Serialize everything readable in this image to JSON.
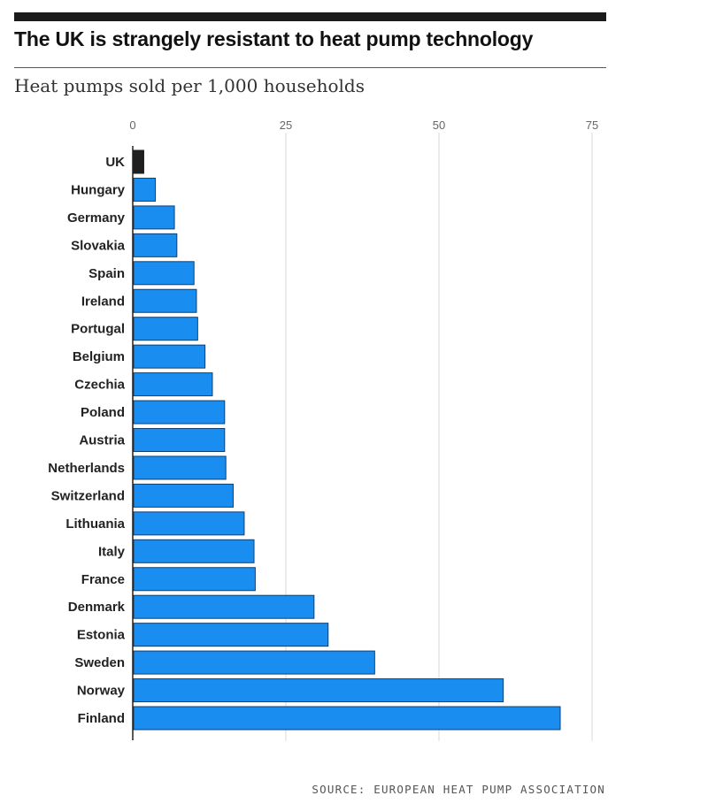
{
  "header": {
    "title": "The UK is strangely resistant to heat pump technology",
    "subtitle": "Heat pumps sold per 1,000 households"
  },
  "footer": {
    "source": "SOURCE: EUROPEAN HEAT PUMP ASSOCIATION"
  },
  "colors": {
    "highlight": "#1f1f1f",
    "bar": "#1a8ef0",
    "bar_outline": "#0f3f73",
    "grid": "#d8d8d8",
    "axis": "#222222"
  },
  "chart_data": {
    "type": "bar",
    "orientation": "horizontal",
    "title": "The UK is strangely resistant to heat pump technology",
    "subtitle": "Heat pumps sold per 1,000 households",
    "xlabel": "",
    "ylabel": "",
    "xlim": [
      0,
      75
    ],
    "xticks": [
      0,
      25,
      50,
      75
    ],
    "grid": true,
    "highlight_category": "UK",
    "categories": [
      "UK",
      "Hungary",
      "Germany",
      "Slovakia",
      "Spain",
      "Ireland",
      "Portugal",
      "Belgium",
      "Czechia",
      "Poland",
      "Austria",
      "Netherlands",
      "Switzerland",
      "Lithuania",
      "Italy",
      "France",
      "Denmark",
      "Estonia",
      "Sweden",
      "Norway",
      "Finland"
    ],
    "values": [
      1.8,
      3.7,
      6.8,
      7.2,
      10.0,
      10.4,
      10.6,
      11.8,
      13.0,
      15.0,
      15.0,
      15.2,
      16.4,
      18.2,
      19.8,
      20.0,
      29.6,
      31.9,
      39.5,
      60.5,
      69.8
    ],
    "source": "SOURCE: EUROPEAN HEAT PUMP ASSOCIATION"
  }
}
